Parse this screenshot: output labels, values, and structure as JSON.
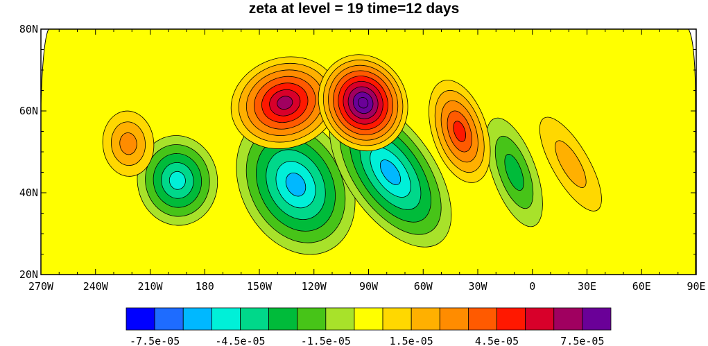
{
  "chart_data": {
    "type": "contour",
    "title": "zeta at level = 19 time=12 days",
    "variable": "zeta",
    "x_ticks": [
      "270W",
      "240W",
      "210W",
      "180",
      "150W",
      "120W",
      "90W",
      "60W",
      "30W",
      "0",
      "30E",
      "60E",
      "90E"
    ],
    "x_range_deg": [
      -270,
      90
    ],
    "y_ticks": [
      "20N",
      "40N",
      "60N",
      "80N"
    ],
    "y_range_deg": [
      20,
      80
    ],
    "background_level": 0,
    "colorbar": {
      "colors": [
        "#0000ff",
        "#1e6cff",
        "#00b8ff",
        "#00f0d8",
        "#00d88a",
        "#00bb3a",
        "#47c418",
        "#a8e22a",
        "#ffff00",
        "#ffd800",
        "#ffb000",
        "#ff8c00",
        "#ff5a00",
        "#ff1800",
        "#d8002a",
        "#a00060",
        "#6a0098"
      ],
      "labels": [
        "-7.5e-05",
        "-4.5e-05",
        "-1.5e-05",
        "1.5e-05",
        "4.5e-05",
        "7.5e-05"
      ]
    },
    "features": [
      {
        "type": "negative",
        "lon": -195,
        "lat": 43,
        "peak": -5e-05
      },
      {
        "type": "negative",
        "lon": -130,
        "lat": 42,
        "peak": -6.5e-05
      },
      {
        "type": "negative",
        "lon": -78,
        "lat": 45,
        "peak": -6.5e-05
      },
      {
        "type": "negative",
        "lon": -10,
        "lat": 45,
        "peak": -2.5e-05
      },
      {
        "type": "positive",
        "lon": -136,
        "lat": 62,
        "peak": 7e-05
      },
      {
        "type": "positive",
        "lon": -93,
        "lat": 62,
        "peak": 9e-05
      },
      {
        "type": "positive",
        "lon": -40,
        "lat": 55,
        "peak": 5e-05
      },
      {
        "type": "positive",
        "lon": -222,
        "lat": 52,
        "peak": 2.5e-05
      },
      {
        "type": "positive",
        "lon": 21,
        "lat": 47,
        "peak": 1.8e-05
      }
    ]
  }
}
